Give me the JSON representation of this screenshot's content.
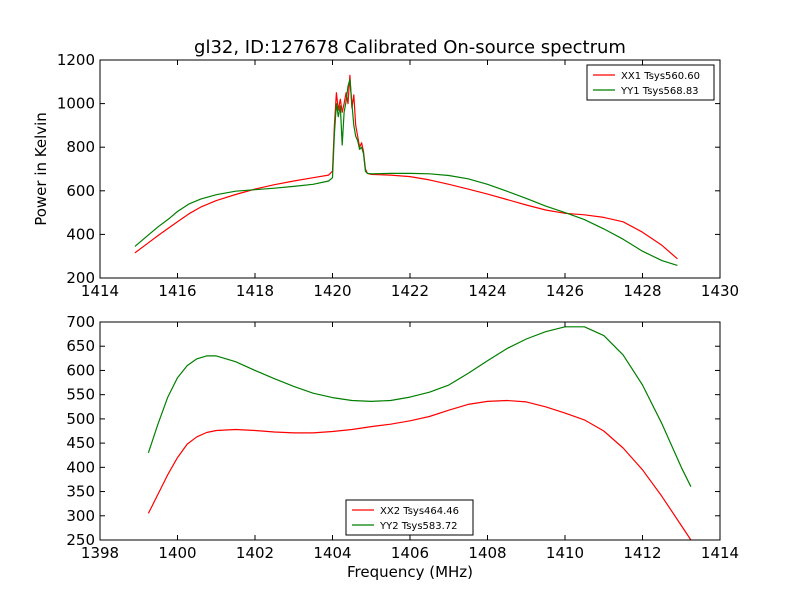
{
  "title": "gl32, ID:127678 Calibrated On-source spectrum",
  "colors": {
    "red": "#ff0000",
    "green": "#007f00"
  },
  "chart_data": [
    {
      "type": "line",
      "ylabel": "Power in Kelvin",
      "xlabel": "",
      "xlim": [
        1414,
        1430
      ],
      "ylim": [
        200,
        1200
      ],
      "xticks": [
        1414,
        1416,
        1418,
        1420,
        1422,
        1424,
        1426,
        1428,
        1430
      ],
      "yticks": [
        200,
        400,
        600,
        800,
        1000,
        1200
      ],
      "grid": false,
      "legend_position": "top-right",
      "series": [
        {
          "name": "XX1 Tsys560.60",
          "color": "#ff0000",
          "x": [
            1414.9,
            1415.2,
            1415.5,
            1415.8,
            1416.0,
            1416.3,
            1416.6,
            1417.0,
            1417.5,
            1418.0,
            1418.5,
            1419.0,
            1419.5,
            1419.9,
            1420.0,
            1420.05,
            1420.1,
            1420.15,
            1420.2,
            1420.25,
            1420.3,
            1420.35,
            1420.4,
            1420.45,
            1420.5,
            1420.55,
            1420.6,
            1420.65,
            1420.7,
            1420.75,
            1420.8,
            1420.85,
            1420.9,
            1421.0,
            1421.5,
            1422.0,
            1422.5,
            1423.0,
            1423.5,
            1424.0,
            1424.5,
            1425.0,
            1425.5,
            1426.0,
            1426.5,
            1427.0,
            1427.5,
            1428.0,
            1428.5,
            1428.9
          ],
          "y": [
            315,
            355,
            395,
            433,
            458,
            495,
            525,
            555,
            583,
            608,
            628,
            645,
            660,
            672,
            690,
            900,
            1050,
            970,
            1020,
            960,
            1000,
            1050,
            1000,
            1130,
            980,
            1040,
            900,
            850,
            800,
            820,
            780,
            700,
            680,
            675,
            672,
            665,
            650,
            630,
            608,
            585,
            560,
            535,
            512,
            497,
            490,
            478,
            458,
            410,
            350,
            288
          ]
        },
        {
          "name": "YY1 Tsys568.83",
          "color": "#007f00",
          "x": [
            1414.9,
            1415.2,
            1415.5,
            1415.8,
            1416.0,
            1416.3,
            1416.6,
            1417.0,
            1417.5,
            1418.0,
            1418.5,
            1419.0,
            1419.5,
            1419.9,
            1420.0,
            1420.05,
            1420.1,
            1420.15,
            1420.2,
            1420.25,
            1420.3,
            1420.35,
            1420.4,
            1420.45,
            1420.5,
            1420.55,
            1420.6,
            1420.65,
            1420.7,
            1420.75,
            1420.8,
            1420.85,
            1420.9,
            1421.0,
            1421.5,
            1422.0,
            1422.5,
            1423.0,
            1423.5,
            1424.0,
            1424.5,
            1425.0,
            1425.5,
            1426.0,
            1426.5,
            1427.0,
            1427.5,
            1428.0,
            1428.5,
            1428.9
          ],
          "y": [
            345,
            390,
            435,
            475,
            505,
            540,
            562,
            582,
            598,
            605,
            612,
            620,
            630,
            645,
            660,
            860,
            1000,
            940,
            990,
            810,
            960,
            1010,
            1080,
            1110,
            1000,
            900,
            850,
            830,
            790,
            800,
            770,
            690,
            680,
            678,
            680,
            680,
            678,
            670,
            655,
            630,
            598,
            565,
            530,
            500,
            468,
            425,
            378,
            323,
            280,
            258
          ]
        }
      ]
    },
    {
      "type": "line",
      "xlabel": "Frequency (MHz)",
      "ylabel": "",
      "xlim": [
        1398,
        1414
      ],
      "ylim": [
        250,
        700
      ],
      "xticks": [
        1398,
        1400,
        1402,
        1404,
        1406,
        1408,
        1410,
        1412,
        1414
      ],
      "yticks": [
        250,
        300,
        350,
        400,
        450,
        500,
        550,
        600,
        650,
        700
      ],
      "grid": false,
      "legend_position": "bottom-center",
      "series": [
        {
          "name": "XX2 Tsys464.46",
          "color": "#ff0000",
          "x": [
            1399.25,
            1399.5,
            1399.75,
            1400.0,
            1400.25,
            1400.5,
            1400.75,
            1401.0,
            1401.5,
            1402.0,
            1402.5,
            1403.0,
            1403.5,
            1404.0,
            1404.5,
            1405.0,
            1405.5,
            1406.0,
            1406.5,
            1407.0,
            1407.5,
            1408.0,
            1408.5,
            1409.0,
            1409.5,
            1410.0,
            1410.5,
            1411.0,
            1411.5,
            1412.0,
            1412.5,
            1413.0,
            1413.25
          ],
          "y": [
            305,
            345,
            385,
            420,
            448,
            463,
            472,
            476,
            478,
            476,
            473,
            471,
            471,
            474,
            478,
            484,
            489,
            496,
            505,
            518,
            530,
            536,
            538,
            535,
            525,
            512,
            498,
            475,
            440,
            395,
            340,
            280,
            250
          ]
        },
        {
          "name": "YY2 Tsys583.72",
          "color": "#007f00",
          "x": [
            1399.25,
            1399.5,
            1399.75,
            1400.0,
            1400.25,
            1400.5,
            1400.75,
            1401.0,
            1401.5,
            1402.0,
            1402.5,
            1403.0,
            1403.5,
            1404.0,
            1404.5,
            1405.0,
            1405.5,
            1406.0,
            1406.5,
            1407.0,
            1407.5,
            1408.0,
            1408.5,
            1409.0,
            1409.5,
            1410.0,
            1410.5,
            1411.0,
            1411.5,
            1412.0,
            1412.5,
            1413.0,
            1413.25
          ],
          "y": [
            430,
            490,
            545,
            585,
            610,
            624,
            630,
            630,
            618,
            600,
            583,
            567,
            553,
            544,
            538,
            536,
            538,
            545,
            555,
            570,
            594,
            620,
            645,
            665,
            680,
            690,
            690,
            672,
            632,
            570,
            490,
            400,
            360
          ]
        }
      ]
    }
  ]
}
